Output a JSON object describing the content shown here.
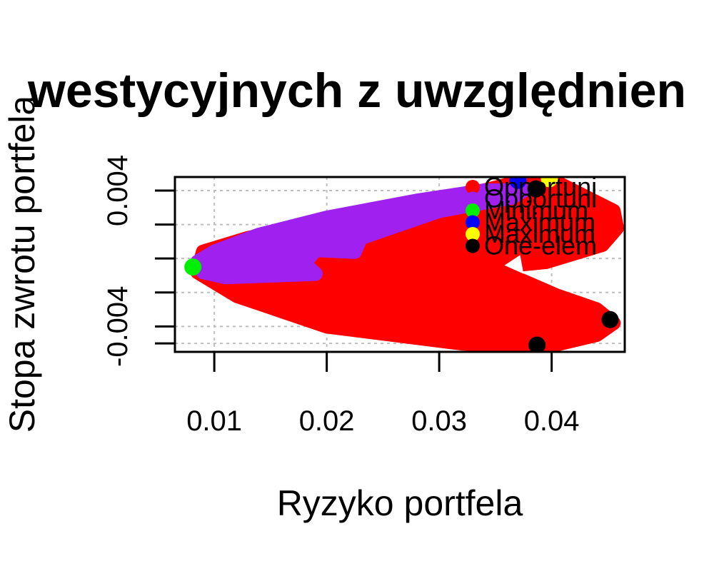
{
  "chart_data": {
    "type": "scatter",
    "title": "westycyjnych z uwzględnien",
    "xlabel": "Ryzyko portfela",
    "ylabel": "Stopa zwrotu portfela",
    "xlim": [
      0.0065,
      0.0465
    ],
    "ylim": [
      -0.0055,
      0.0048
    ],
    "x_ticks": [
      0.01,
      0.02,
      0.03,
      0.04
    ],
    "x_tick_labels": [
      "0.01",
      "0.02",
      "0.03",
      "0.04"
    ],
    "y_ticks": [
      -0.005,
      -0.004,
      -0.002,
      0.0,
      0.002,
      0.004
    ],
    "y_tick_labels": [
      "-0.004",
      "0.004"
    ],
    "y_tick_label_values": [
      -0.004,
      0.004
    ],
    "grid": true,
    "legend_position": "top-right",
    "series": [
      {
        "name": "Opportuni",
        "color": "#ff0000",
        "region": [
          [
            0.0395,
            0.0048
          ],
          [
            0.0455,
            0.0028
          ],
          [
            0.0458,
            0.0018
          ],
          [
            0.0445,
            0.0008
          ],
          [
            0.042,
            0.0003
          ],
          [
            0.0395,
            -0.0002
          ],
          [
            0.0365,
            -0.0004
          ],
          [
            0.037,
            -0.0012
          ],
          [
            0.0405,
            -0.0022
          ],
          [
            0.044,
            -0.003
          ],
          [
            0.0455,
            -0.0038
          ],
          [
            0.044,
            -0.0045
          ],
          [
            0.0395,
            -0.0052
          ],
          [
            0.032,
            -0.005
          ],
          [
            0.02,
            -0.004
          ],
          [
            0.012,
            -0.0022
          ],
          [
            0.0085,
            -0.0008
          ],
          [
            0.009,
            0.0004
          ],
          [
            0.013,
            0.0012
          ],
          [
            0.02,
            0.0022
          ],
          [
            0.028,
            0.0032
          ],
          [
            0.034,
            0.004
          ],
          [
            0.037,
            0.0045
          ]
        ],
        "region_hole": [
          [
            0.0372,
            0.0002
          ],
          [
            0.0358,
            -0.0004
          ],
          [
            0.0375,
            -0.0009
          ]
        ]
      },
      {
        "name": "Opportuni",
        "color": "#a020f0",
        "region": [
          [
            0.0375,
            0.004
          ],
          [
            0.0365,
            0.0036
          ],
          [
            0.03,
            0.0028
          ],
          [
            0.023,
            0.0012
          ],
          [
            0.0225,
            0.0004
          ],
          [
            0.019,
            0.0005
          ],
          [
            0.018,
            -0.0003
          ],
          [
            0.019,
            -0.0009
          ],
          [
            0.011,
            -0.0011
          ],
          [
            0.009,
            -0.0008
          ],
          [
            0.0085,
            -0.0002
          ],
          [
            0.01,
            0.0004
          ],
          [
            0.014,
            0.0014
          ],
          [
            0.02,
            0.0024
          ],
          [
            0.028,
            0.0034
          ],
          [
            0.034,
            0.004
          ]
        ]
      },
      {
        "name": "Minimum",
        "color": "#00ee00",
        "points": [
          [
            0.0081,
            -0.0005
          ]
        ]
      },
      {
        "name": "Maximum",
        "color": "#0000ff",
        "points": [
          [
            0.037,
            0.0046
          ]
        ]
      },
      {
        "name": "Maximum",
        "color": "#ffff00",
        "points": [
          [
            0.0398,
            0.0047
          ]
        ]
      },
      {
        "name": "One-elem",
        "color": "#000000",
        "points": [
          [
            0.0386,
            0.0041
          ],
          [
            0.0452,
            -0.0036
          ],
          [
            0.0387,
            -0.0051
          ]
        ]
      }
    ]
  }
}
